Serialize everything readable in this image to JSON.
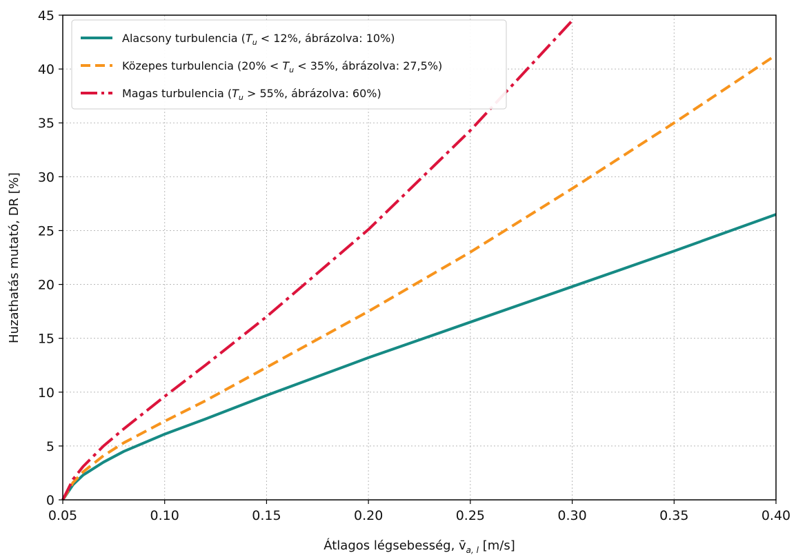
{
  "chart_data": {
    "type": "line",
    "title": "",
    "xlabel": "Átlagos légsebesség, v̄",
    "xlabel_sub": "a, l",
    "xlabel_unit": " [m/s]",
    "ylabel": "Huzathatás mutató, DR [%]",
    "xlim": [
      0.05,
      0.4
    ],
    "ylim": [
      0,
      45
    ],
    "xticks": [
      "0.05",
      "0.10",
      "0.15",
      "0.20",
      "0.25",
      "0.30",
      "0.35",
      "0.40"
    ],
    "yticks": [
      "0",
      "5",
      "10",
      "15",
      "20",
      "25",
      "30",
      "35",
      "40",
      "45"
    ],
    "grid": true,
    "legend_position": "top-left",
    "x": [
      0.05,
      0.055,
      0.06,
      0.07,
      0.08,
      0.1,
      0.12,
      0.15,
      0.2,
      0.25,
      0.3,
      0.35,
      0.4
    ],
    "series": [
      {
        "name_pre": "Alacsony turbulencia (",
        "name_post": " < 12%, ábrázolva: 10%)",
        "color": "#168a84",
        "style": "solid",
        "values": [
          0,
          1.4,
          2.3,
          3.5,
          4.5,
          6.1,
          7.5,
          9.7,
          13.2,
          16.5,
          19.8,
          23.1,
          26.5
        ]
      },
      {
        "name_pre": "Közepes turbulencia (20% < ",
        "name_post": " < 35%, ábrázolva: 27,5%)",
        "color": "#f7941d",
        "style": "dashed",
        "values": [
          0,
          1.6,
          2.6,
          4.1,
          5.3,
          7.3,
          9.2,
          12.3,
          17.5,
          23.0,
          28.9,
          35.0,
          41.3
        ]
      },
      {
        "name_pre": "Magas turbulencia (",
        "name_post": " > 55%, ábrázolva: 60%)",
        "color": "#dc143c",
        "style": "dashdot",
        "values": [
          0,
          1.9,
          3.1,
          5.0,
          6.6,
          9.6,
          12.5,
          17.0,
          25.1,
          34.3,
          44.5,
          null,
          null
        ]
      }
    ],
    "legend_symbol": "T",
    "legend_symbol_sub": "u"
  }
}
